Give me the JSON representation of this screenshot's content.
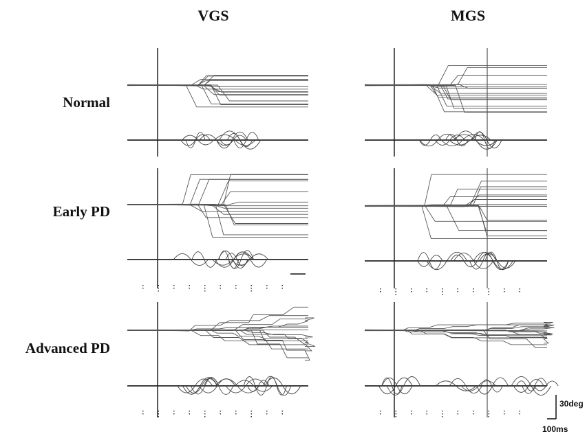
{
  "columns": [
    "VGS",
    "MGS"
  ],
  "rows": [
    "Normal",
    "Early PD",
    "Advanced PD"
  ],
  "scale_bar": {
    "amplitude_label": "30deg",
    "time_label": "100ms"
  }
}
